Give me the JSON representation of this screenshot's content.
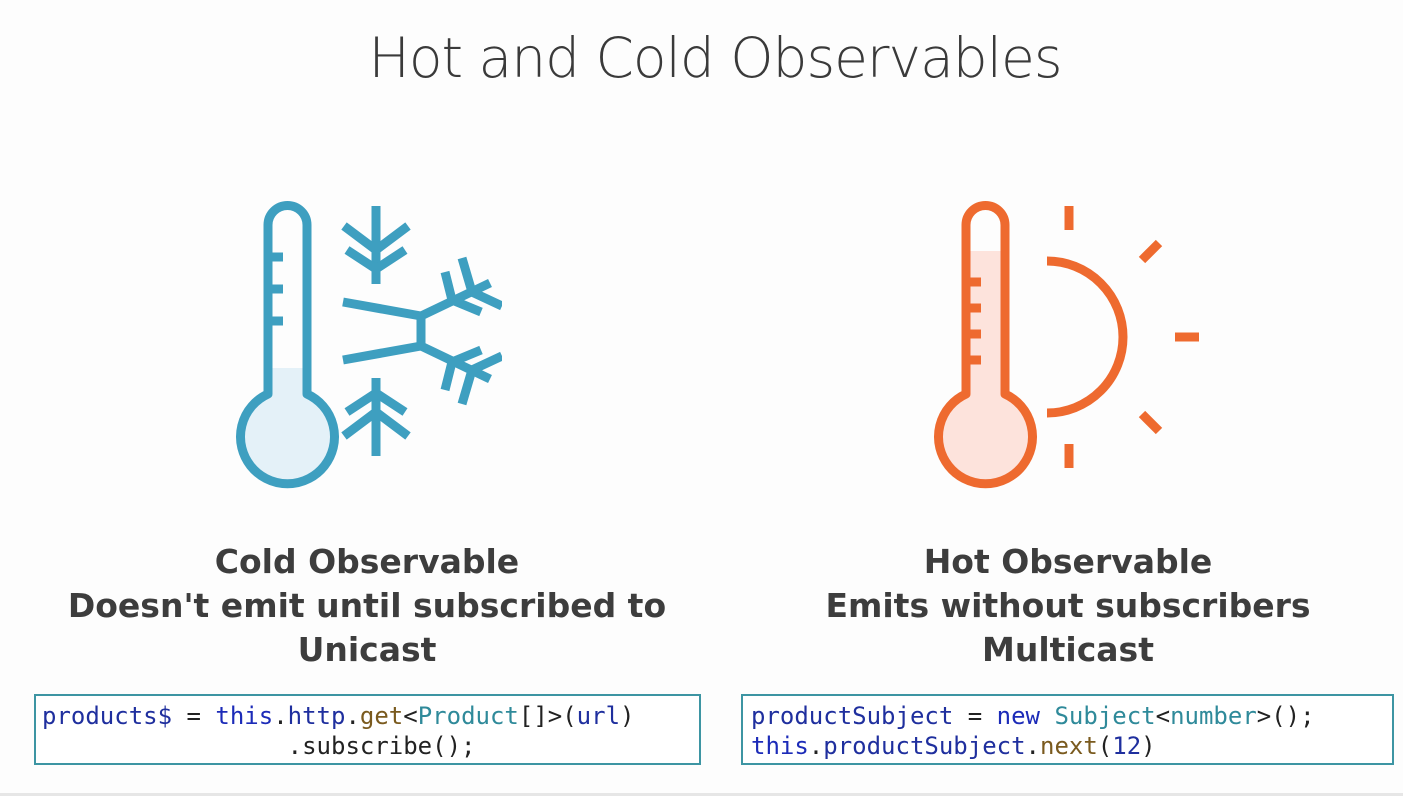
{
  "slide": {
    "title": "Hot and Cold Observables"
  },
  "cold": {
    "icon": "thermometer-snowflake-icon",
    "color": "#3e9fc0",
    "fill": "#e4f1f8",
    "heading": "Cold Observable",
    "line1": "Doesn't emit until subscribed to",
    "line2": "Unicast",
    "code": {
      "line1": {
        "var": "products$",
        "op": " = ",
        "kw": "this",
        "dot1": ".",
        "prop": "http",
        "dot2": ".",
        "fn": "get",
        "lt": "<",
        "type": "Product",
        "rest": "[]>(",
        "arg": "url",
        "close": ")"
      },
      "line2": {
        "indent": "                 ",
        "text": ".subscribe();"
      }
    }
  },
  "hot": {
    "icon": "thermometer-sun-icon",
    "color": "#ee6a2f",
    "fill": "#fde3dc",
    "heading": "Hot Observable",
    "line1": "Emits without subscribers",
    "line2": "Multicast",
    "code": {
      "line1": {
        "var": "productSubject",
        "op": " = ",
        "kw": "new",
        "sp": " ",
        "type": "Subject",
        "lt": "<",
        "generic": "number",
        "rest": ">();"
      },
      "line2": {
        "kw": "this",
        "dot1": ".",
        "prop": "productSubject",
        "dot2": ".",
        "fn": "next",
        "open": "(",
        "num": "12",
        "close": ")"
      }
    }
  }
}
